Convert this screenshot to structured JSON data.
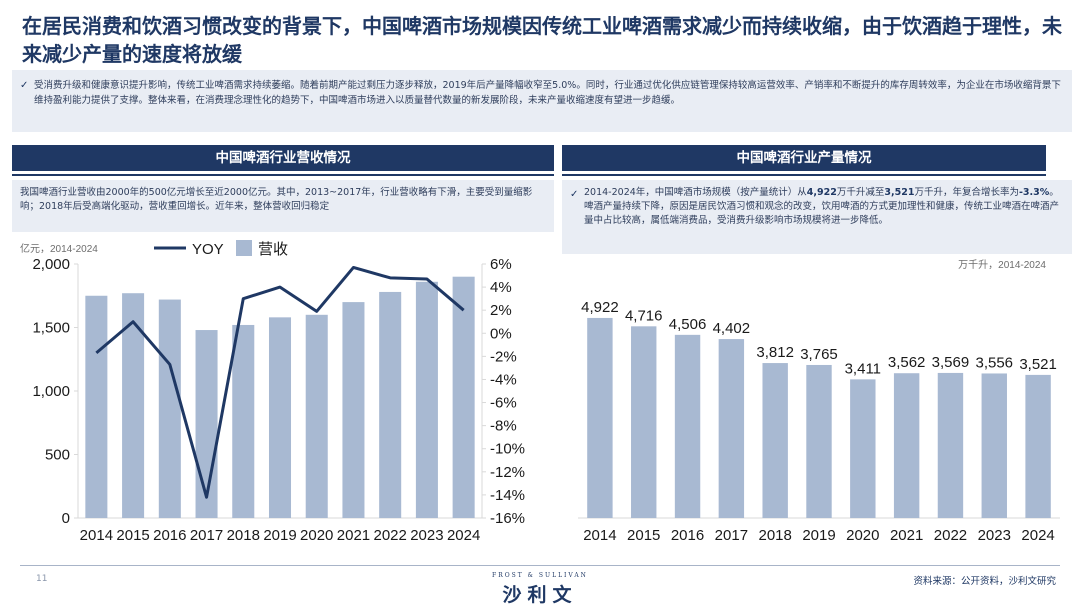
{
  "title": "在居民消费和饮酒习惯改变的背景下，中国啤酒市场规模因传统工业啤酒需求减少而持续收缩，由于饮酒趋于理性，未来减少产量的速度将放缓",
  "summary": "受消费升级和健康意识提升影响，传统工业啤酒需求持续萎缩。随着前期产能过剩压力逐步释放，2019年后产量降幅收窄至5.0%。同时，行业通过优化供应链管理保持较高运营效率、产销率和不断提升的库存周转效率，为企业在市场收缩背景下维持盈利能力提供了支撑。整体来看，在消费理念理性化的趋势下，中国啤酒市场进入以质量替代数量的新发展阶段，未来产量收缩速度有望进一步趋缓。",
  "left_panel": {
    "header": "中国啤酒行业营收情况",
    "note": "我国啤酒行业营收由2000年的500亿元增长至近2000亿元。其中，2013~2017年，行业营收略有下滑，主要受到量缩影响；2018年后受高端化驱动，营收重回增长。近年来，整体营收回归稳定",
    "unit": "亿元，2014-2024"
  },
  "right_panel": {
    "header": "中国啤酒行业产量情况",
    "note_pre": "2014-2024年，中国啤酒市场规模（按产量统计）从",
    "note_v1": "4,922",
    "note_mid1": "万千升减至",
    "note_v2": "3,521",
    "note_mid2": "万千升，年复合增长率为",
    "note_v3": "-3.3%",
    "note_post": "。啤酒产量持续下降，原因是居民饮酒习惯和观念的改变，饮用啤酒的方式更加理性和健康，传统工业啤酒在啤酒产量中占比较高，属低端消费品，受消费升级影响市场规模将进一步降低。",
    "unit": "万千升，2014-2024"
  },
  "colors": {
    "navy": "#1f3864",
    "bar": "#a8b9d2",
    "bg": "#e9edf4"
  },
  "chart_data": [
    {
      "type": "bar",
      "categories": [
        "2014",
        "2015",
        "2016",
        "2017",
        "2018",
        "2019",
        "2020",
        "2021",
        "2022",
        "2023",
        "2024"
      ],
      "series": [
        {
          "name": "营收",
          "type": "bar",
          "axis": "left",
          "values": [
            1750,
            1770,
            1720,
            1480,
            1520,
            1580,
            1600,
            1700,
            1780,
            1860,
            1900
          ]
        },
        {
          "name": "YOY",
          "type": "line",
          "axis": "right",
          "unit": "%",
          "values": [
            -1.7,
            1.0,
            -2.7,
            -14.2,
            3.0,
            4.0,
            1.9,
            5.7,
            4.8,
            4.7,
            2.0
          ]
        }
      ],
      "y_left": {
        "ylim": [
          0,
          2000
        ],
        "ticks": [
          "0",
          "500",
          "1,000",
          "1,500",
          "2,000"
        ]
      },
      "y_right": {
        "ylim": [
          -16,
          6
        ],
        "ticks": [
          "-16%",
          "-14%",
          "-12%",
          "-10%",
          "-8%",
          "-6%",
          "-4%",
          "-2%",
          "0%",
          "2%",
          "4%",
          "6%"
        ]
      },
      "legend": {
        "position": "top",
        "entries": [
          "YOY",
          "营收"
        ]
      }
    },
    {
      "type": "bar",
      "categories": [
        "2014",
        "2015",
        "2016",
        "2017",
        "2018",
        "2019",
        "2020",
        "2021",
        "2022",
        "2023",
        "2024"
      ],
      "values": [
        4922,
        4716,
        4506,
        4402,
        3812,
        3765,
        3411,
        3562,
        3569,
        3556,
        3521
      ],
      "labels": [
        "4,922",
        "4,716",
        "4,506",
        "4,402",
        "3,812",
        "3,765",
        "3,411",
        "3,562",
        "3,569",
        "3,556",
        "3,521"
      ],
      "ylim": [
        0,
        6200
      ]
    }
  ],
  "footer": {
    "page": "11",
    "brand_small": "FROST & SULLIVAN",
    "brand": "沙利文",
    "source": "资料来源：公开资料，沙利文研究"
  }
}
